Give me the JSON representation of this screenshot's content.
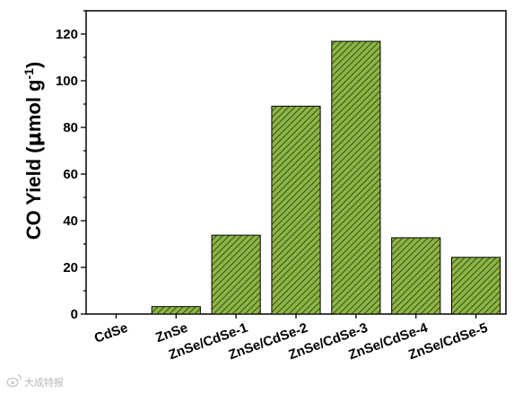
{
  "chart_data": {
    "type": "bar",
    "categories": [
      "CdSe",
      "ZnSe",
      "ZnSe/CdSe-1",
      "ZnSe/CdSe-2",
      "ZnSe/CdSe-3",
      "ZnSe/CdSe-4",
      "ZnSe/CdSe-5"
    ],
    "values": [
      0,
      3.2,
      33.8,
      89.1,
      116.9,
      32.7,
      24.3
    ],
    "ylabel_main": "CO Yield (",
    "ylabel_mu": "μ",
    "ylabel_unit": "mol g",
    "ylabel_sup": "-1",
    "ylabel_close": ")",
    "ylim": [
      0,
      130
    ],
    "yticks": [
      0,
      20,
      40,
      60,
      80,
      100,
      120
    ],
    "bar_color": "#8db545",
    "hatch_color": "#3a4d18",
    "grid": false
  },
  "watermark": {
    "icon": "weibo-logo-icon",
    "text": "大成特报"
  }
}
